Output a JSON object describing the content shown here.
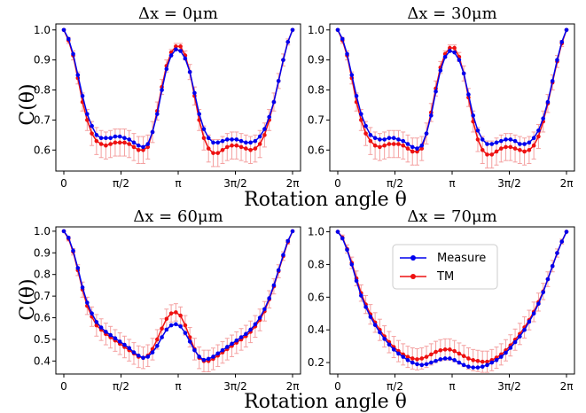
{
  "xlabel": "Rotation angle θ",
  "ylabel": "C(θ)",
  "legend": {
    "placement": "upper-center",
    "series_measure": "Measure",
    "series_tm": "TM"
  },
  "colors": {
    "measure": "#0000ee",
    "tm": "#ee1111",
    "tm_err": "#f4a0a0"
  },
  "x_tick_labels": [
    "0",
    "π/2",
    "π",
    "3π/2",
    "2π"
  ],
  "chart_data": [
    {
      "type": "line",
      "title": "Δx = 0μm",
      "xlim": [
        0,
        6.2832
      ],
      "ylim": [
        0.53,
        1.02
      ],
      "yticks": [
        0.6,
        0.7,
        0.8,
        0.9,
        1.0
      ],
      "ytick_labels": [
        "0.6",
        "0.7",
        "0.8",
        "0.9",
        "1.0"
      ],
      "xticks": [
        0,
        1.5708,
        3.1416,
        4.7124,
        6.2832
      ],
      "series": [
        {
          "name": "Measure",
          "values": [
            1.0,
            0.97,
            0.92,
            0.85,
            0.78,
            0.72,
            0.68,
            0.65,
            0.64,
            0.64,
            0.64,
            0.645,
            0.645,
            0.64,
            0.635,
            0.625,
            0.615,
            0.61,
            0.62,
            0.66,
            0.72,
            0.8,
            0.87,
            0.915,
            0.935,
            0.93,
            0.905,
            0.86,
            0.79,
            0.72,
            0.67,
            0.64,
            0.625,
            0.625,
            0.63,
            0.635,
            0.635,
            0.635,
            0.63,
            0.625,
            0.625,
            0.63,
            0.645,
            0.67,
            0.71,
            0.76,
            0.83,
            0.9,
            0.96,
            1.0
          ]
        },
        {
          "name": "TM",
          "values": [
            1.0,
            0.965,
            0.915,
            0.84,
            0.76,
            0.7,
            0.655,
            0.63,
            0.62,
            0.615,
            0.62,
            0.625,
            0.625,
            0.625,
            0.62,
            0.61,
            0.6,
            0.6,
            0.61,
            0.66,
            0.73,
            0.81,
            0.88,
            0.925,
            0.945,
            0.945,
            0.915,
            0.86,
            0.78,
            0.7,
            0.64,
            0.605,
            0.59,
            0.59,
            0.6,
            0.61,
            0.615,
            0.615,
            0.61,
            0.605,
            0.6,
            0.605,
            0.62,
            0.65,
            0.7,
            0.76,
            0.83,
            0.9,
            0.96,
            1.0
          ]
        }
      ],
      "tm_error": [
        0,
        0.01,
        0.015,
        0.02,
        0.03,
        0.035,
        0.04,
        0.045,
        0.045,
        0.045,
        0.045,
        0.045,
        0.045,
        0.045,
        0.045,
        0.045,
        0.045,
        0.045,
        0.04,
        0.035,
        0.03,
        0.025,
        0.02,
        0.01,
        0.01,
        0.01,
        0.015,
        0.025,
        0.03,
        0.035,
        0.04,
        0.045,
        0.045,
        0.045,
        0.045,
        0.045,
        0.045,
        0.045,
        0.045,
        0.045,
        0.045,
        0.045,
        0.045,
        0.04,
        0.035,
        0.03,
        0.025,
        0.02,
        0.01,
        0
      ]
    },
    {
      "type": "line",
      "title": "Δx = 30μm",
      "xlim": [
        0,
        6.2832
      ],
      "ylim": [
        0.53,
        1.02
      ],
      "yticks": [
        0.6,
        0.7,
        0.8,
        0.9,
        1.0
      ],
      "ytick_labels": [
        "0.6",
        "0.7",
        "0.8",
        "0.9",
        "1.0"
      ],
      "xticks": [
        0,
        1.5708,
        3.1416,
        4.7124,
        6.2832
      ],
      "series": [
        {
          "name": "Measure",
          "values": [
            1.0,
            0.97,
            0.92,
            0.85,
            0.78,
            0.72,
            0.68,
            0.65,
            0.64,
            0.635,
            0.635,
            0.64,
            0.64,
            0.635,
            0.63,
            0.62,
            0.61,
            0.605,
            0.615,
            0.655,
            0.715,
            0.795,
            0.865,
            0.91,
            0.93,
            0.925,
            0.9,
            0.855,
            0.785,
            0.715,
            0.665,
            0.635,
            0.62,
            0.62,
            0.625,
            0.63,
            0.635,
            0.635,
            0.63,
            0.62,
            0.62,
            0.625,
            0.64,
            0.665,
            0.705,
            0.76,
            0.83,
            0.9,
            0.96,
            1.0
          ]
        },
        {
          "name": "TM",
          "values": [
            1.0,
            0.965,
            0.915,
            0.84,
            0.76,
            0.7,
            0.655,
            0.63,
            0.615,
            0.61,
            0.615,
            0.62,
            0.62,
            0.62,
            0.615,
            0.605,
            0.595,
            0.595,
            0.605,
            0.655,
            0.725,
            0.805,
            0.875,
            0.92,
            0.94,
            0.94,
            0.91,
            0.855,
            0.775,
            0.695,
            0.635,
            0.6,
            0.585,
            0.585,
            0.595,
            0.605,
            0.61,
            0.61,
            0.605,
            0.6,
            0.595,
            0.6,
            0.615,
            0.645,
            0.695,
            0.755,
            0.825,
            0.895,
            0.955,
            1.0
          ]
        }
      ],
      "tm_error": [
        0,
        0.01,
        0.015,
        0.02,
        0.03,
        0.035,
        0.04,
        0.045,
        0.045,
        0.045,
        0.045,
        0.045,
        0.045,
        0.045,
        0.045,
        0.045,
        0.045,
        0.045,
        0.04,
        0.035,
        0.03,
        0.025,
        0.02,
        0.01,
        0.01,
        0.01,
        0.015,
        0.025,
        0.03,
        0.035,
        0.04,
        0.045,
        0.045,
        0.045,
        0.045,
        0.045,
        0.045,
        0.045,
        0.045,
        0.045,
        0.045,
        0.045,
        0.045,
        0.04,
        0.035,
        0.03,
        0.025,
        0.02,
        0.01,
        0
      ]
    },
    {
      "type": "line",
      "title": "Δx = 60μm",
      "xlim": [
        0,
        6.2832
      ],
      "ylim": [
        0.34,
        1.02
      ],
      "yticks": [
        0.4,
        0.5,
        0.6,
        0.7,
        0.8,
        0.9,
        1.0
      ],
      "ytick_labels": [
        "0.4",
        "0.5",
        "0.6",
        "0.7",
        "0.8",
        "0.9",
        "1.0"
      ],
      "xticks": [
        0,
        1.5708,
        3.1416,
        4.7124,
        6.2832
      ],
      "series": [
        {
          "name": "Measure",
          "values": [
            1.0,
            0.97,
            0.91,
            0.83,
            0.74,
            0.67,
            0.62,
            0.58,
            0.555,
            0.535,
            0.52,
            0.505,
            0.49,
            0.475,
            0.46,
            0.44,
            0.425,
            0.415,
            0.42,
            0.44,
            0.47,
            0.51,
            0.545,
            0.565,
            0.57,
            0.56,
            0.53,
            0.49,
            0.45,
            0.42,
            0.405,
            0.41,
            0.42,
            0.435,
            0.45,
            0.465,
            0.48,
            0.495,
            0.51,
            0.525,
            0.545,
            0.57,
            0.6,
            0.64,
            0.69,
            0.75,
            0.82,
            0.89,
            0.955,
            1.0
          ]
        },
        {
          "name": "TM",
          "values": [
            1.0,
            0.965,
            0.905,
            0.82,
            0.73,
            0.655,
            0.605,
            0.565,
            0.545,
            0.525,
            0.51,
            0.495,
            0.48,
            0.465,
            0.45,
            0.435,
            0.42,
            0.415,
            0.425,
            0.455,
            0.5,
            0.55,
            0.595,
            0.62,
            0.625,
            0.61,
            0.565,
            0.51,
            0.455,
            0.415,
            0.4,
            0.4,
            0.41,
            0.425,
            0.44,
            0.455,
            0.47,
            0.485,
            0.5,
            0.515,
            0.535,
            0.56,
            0.59,
            0.63,
            0.685,
            0.745,
            0.815,
            0.885,
            0.95,
            1.0
          ]
        }
      ],
      "tm_error": [
        0,
        0.01,
        0.015,
        0.025,
        0.035,
        0.04,
        0.045,
        0.05,
        0.05,
        0.05,
        0.05,
        0.05,
        0.05,
        0.05,
        0.05,
        0.05,
        0.05,
        0.05,
        0.05,
        0.05,
        0.045,
        0.045,
        0.045,
        0.04,
        0.04,
        0.04,
        0.045,
        0.045,
        0.05,
        0.05,
        0.05,
        0.05,
        0.05,
        0.05,
        0.05,
        0.05,
        0.05,
        0.05,
        0.05,
        0.05,
        0.05,
        0.05,
        0.05,
        0.045,
        0.04,
        0.035,
        0.03,
        0.02,
        0.01,
        0
      ]
    },
    {
      "type": "line",
      "title": "Δx = 70μm",
      "xlim": [
        0,
        6.2832
      ],
      "ylim": [
        0.13,
        1.03
      ],
      "yticks": [
        0.2,
        0.4,
        0.6,
        0.8,
        1.0
      ],
      "ytick_labels": [
        "0.2",
        "0.4",
        "0.6",
        "0.8",
        "1.0"
      ],
      "xticks": [
        0,
        1.5708,
        3.1416,
        4.7124,
        6.2832
      ],
      "series": [
        {
          "name": "Measure",
          "values": [
            1.0,
            0.96,
            0.89,
            0.8,
            0.7,
            0.61,
            0.54,
            0.48,
            0.43,
            0.385,
            0.345,
            0.31,
            0.28,
            0.255,
            0.235,
            0.215,
            0.2,
            0.19,
            0.185,
            0.19,
            0.2,
            0.21,
            0.22,
            0.225,
            0.225,
            0.215,
            0.2,
            0.185,
            0.175,
            0.17,
            0.17,
            0.175,
            0.185,
            0.2,
            0.215,
            0.235,
            0.26,
            0.29,
            0.325,
            0.36,
            0.4,
            0.45,
            0.5,
            0.56,
            0.63,
            0.71,
            0.79,
            0.87,
            0.94,
            1.0
          ]
        },
        {
          "name": "TM",
          "values": [
            1.0,
            0.965,
            0.895,
            0.81,
            0.715,
            0.625,
            0.555,
            0.495,
            0.445,
            0.4,
            0.36,
            0.325,
            0.295,
            0.27,
            0.25,
            0.235,
            0.225,
            0.22,
            0.225,
            0.235,
            0.25,
            0.265,
            0.275,
            0.28,
            0.28,
            0.27,
            0.255,
            0.24,
            0.225,
            0.215,
            0.21,
            0.205,
            0.205,
            0.215,
            0.23,
            0.25,
            0.275,
            0.305,
            0.34,
            0.375,
            0.415,
            0.46,
            0.51,
            0.57,
            0.635,
            0.71,
            0.79,
            0.87,
            0.94,
            1.0
          ]
        }
      ],
      "tm_error": [
        0,
        0.015,
        0.025,
        0.035,
        0.045,
        0.05,
        0.055,
        0.06,
        0.06,
        0.065,
        0.065,
        0.065,
        0.065,
        0.065,
        0.065,
        0.065,
        0.065,
        0.065,
        0.065,
        0.065,
        0.065,
        0.065,
        0.065,
        0.065,
        0.065,
        0.065,
        0.065,
        0.065,
        0.065,
        0.065,
        0.065,
        0.065,
        0.065,
        0.065,
        0.065,
        0.065,
        0.065,
        0.065,
        0.065,
        0.065,
        0.065,
        0.06,
        0.06,
        0.055,
        0.05,
        0.045,
        0.035,
        0.025,
        0.015,
        0
      ]
    }
  ]
}
